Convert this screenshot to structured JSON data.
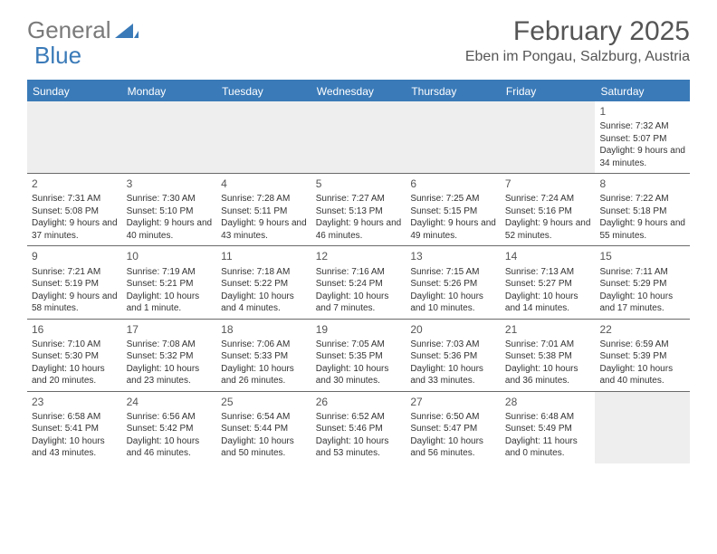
{
  "logo": {
    "text_general": "General",
    "text_blue": "Blue"
  },
  "title": "February 2025",
  "location": "Eben im Pongau, Salzburg, Austria",
  "colors": {
    "header_bar": "#3a7ab8",
    "header_text": "#ffffff",
    "empty_cell": "#eeeeee",
    "text": "#333333",
    "title_text": "#555555",
    "divider": "#6a6a6a"
  },
  "day_names": [
    "Sunday",
    "Monday",
    "Tuesday",
    "Wednesday",
    "Thursday",
    "Friday",
    "Saturday"
  ],
  "weeks": [
    [
      null,
      null,
      null,
      null,
      null,
      null,
      {
        "n": "1",
        "sunrise": "7:32 AM",
        "sunset": "5:07 PM",
        "daylight": "9 hours and 34 minutes."
      }
    ],
    [
      {
        "n": "2",
        "sunrise": "7:31 AM",
        "sunset": "5:08 PM",
        "daylight": "9 hours and 37 minutes."
      },
      {
        "n": "3",
        "sunrise": "7:30 AM",
        "sunset": "5:10 PM",
        "daylight": "9 hours and 40 minutes."
      },
      {
        "n": "4",
        "sunrise": "7:28 AM",
        "sunset": "5:11 PM",
        "daylight": "9 hours and 43 minutes."
      },
      {
        "n": "5",
        "sunrise": "7:27 AM",
        "sunset": "5:13 PM",
        "daylight": "9 hours and 46 minutes."
      },
      {
        "n": "6",
        "sunrise": "7:25 AM",
        "sunset": "5:15 PM",
        "daylight": "9 hours and 49 minutes."
      },
      {
        "n": "7",
        "sunrise": "7:24 AM",
        "sunset": "5:16 PM",
        "daylight": "9 hours and 52 minutes."
      },
      {
        "n": "8",
        "sunrise": "7:22 AM",
        "sunset": "5:18 PM",
        "daylight": "9 hours and 55 minutes."
      }
    ],
    [
      {
        "n": "9",
        "sunrise": "7:21 AM",
        "sunset": "5:19 PM",
        "daylight": "9 hours and 58 minutes."
      },
      {
        "n": "10",
        "sunrise": "7:19 AM",
        "sunset": "5:21 PM",
        "daylight": "10 hours and 1 minute."
      },
      {
        "n": "11",
        "sunrise": "7:18 AM",
        "sunset": "5:22 PM",
        "daylight": "10 hours and 4 minutes."
      },
      {
        "n": "12",
        "sunrise": "7:16 AM",
        "sunset": "5:24 PM",
        "daylight": "10 hours and 7 minutes."
      },
      {
        "n": "13",
        "sunrise": "7:15 AM",
        "sunset": "5:26 PM",
        "daylight": "10 hours and 10 minutes."
      },
      {
        "n": "14",
        "sunrise": "7:13 AM",
        "sunset": "5:27 PM",
        "daylight": "10 hours and 14 minutes."
      },
      {
        "n": "15",
        "sunrise": "7:11 AM",
        "sunset": "5:29 PM",
        "daylight": "10 hours and 17 minutes."
      }
    ],
    [
      {
        "n": "16",
        "sunrise": "7:10 AM",
        "sunset": "5:30 PM",
        "daylight": "10 hours and 20 minutes."
      },
      {
        "n": "17",
        "sunrise": "7:08 AM",
        "sunset": "5:32 PM",
        "daylight": "10 hours and 23 minutes."
      },
      {
        "n": "18",
        "sunrise": "7:06 AM",
        "sunset": "5:33 PM",
        "daylight": "10 hours and 26 minutes."
      },
      {
        "n": "19",
        "sunrise": "7:05 AM",
        "sunset": "5:35 PM",
        "daylight": "10 hours and 30 minutes."
      },
      {
        "n": "20",
        "sunrise": "7:03 AM",
        "sunset": "5:36 PM",
        "daylight": "10 hours and 33 minutes."
      },
      {
        "n": "21",
        "sunrise": "7:01 AM",
        "sunset": "5:38 PM",
        "daylight": "10 hours and 36 minutes."
      },
      {
        "n": "22",
        "sunrise": "6:59 AM",
        "sunset": "5:39 PM",
        "daylight": "10 hours and 40 minutes."
      }
    ],
    [
      {
        "n": "23",
        "sunrise": "6:58 AM",
        "sunset": "5:41 PM",
        "daylight": "10 hours and 43 minutes."
      },
      {
        "n": "24",
        "sunrise": "6:56 AM",
        "sunset": "5:42 PM",
        "daylight": "10 hours and 46 minutes."
      },
      {
        "n": "25",
        "sunrise": "6:54 AM",
        "sunset": "5:44 PM",
        "daylight": "10 hours and 50 minutes."
      },
      {
        "n": "26",
        "sunrise": "6:52 AM",
        "sunset": "5:46 PM",
        "daylight": "10 hours and 53 minutes."
      },
      {
        "n": "27",
        "sunrise": "6:50 AM",
        "sunset": "5:47 PM",
        "daylight": "10 hours and 56 minutes."
      },
      {
        "n": "28",
        "sunrise": "6:48 AM",
        "sunset": "5:49 PM",
        "daylight": "11 hours and 0 minutes."
      },
      null
    ]
  ]
}
